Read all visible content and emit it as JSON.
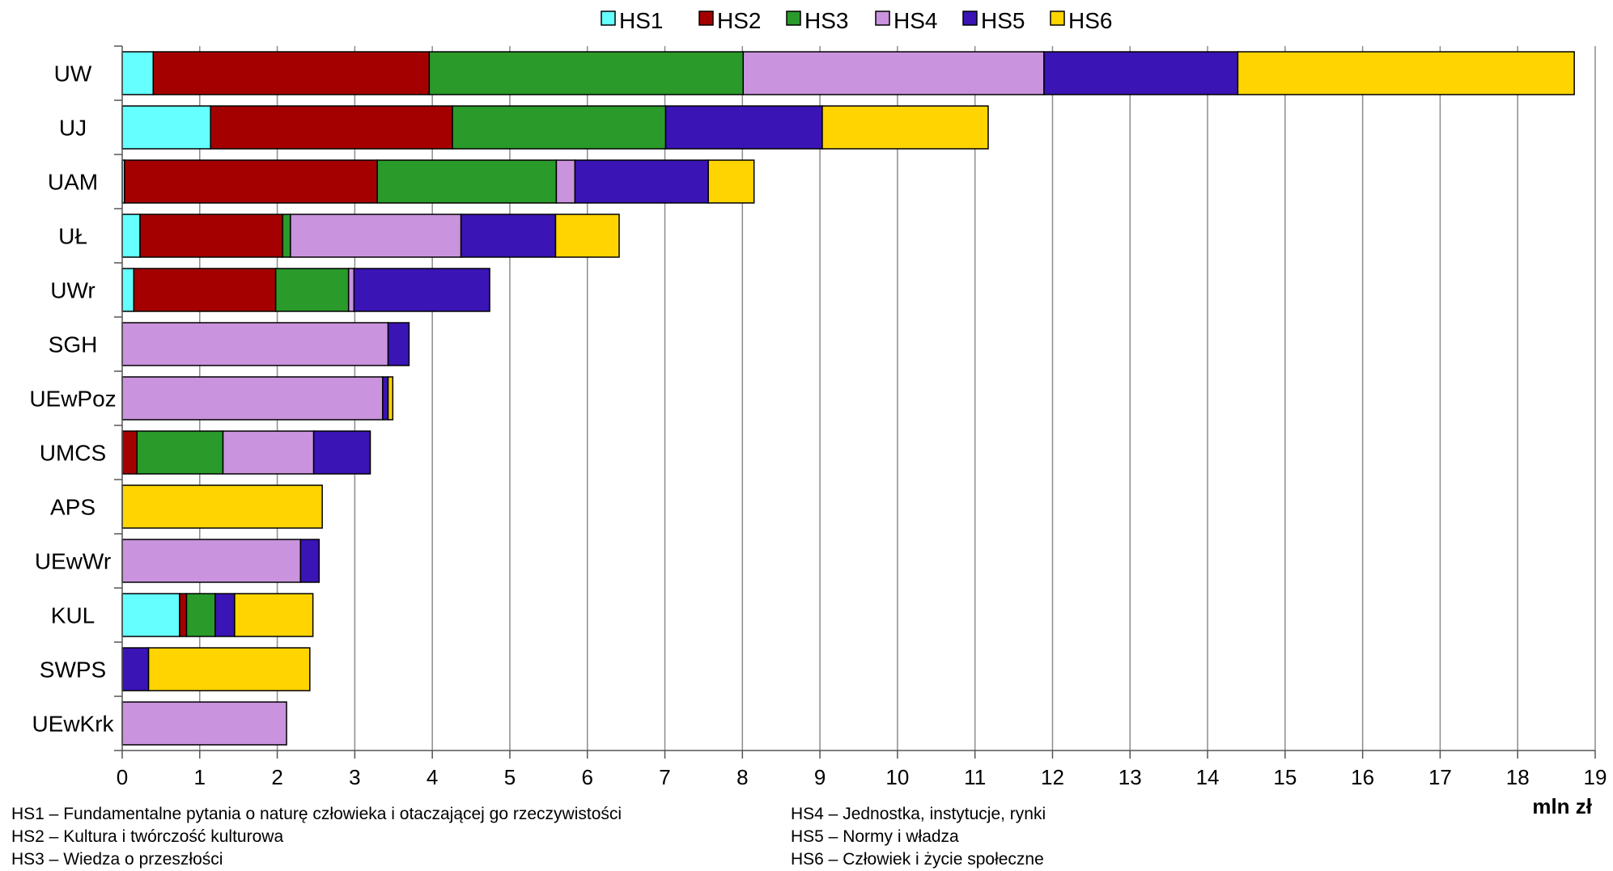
{
  "chart_data": {
    "type": "bar",
    "orientation": "horizontal",
    "stacked": true,
    "categories": [
      "UW",
      "UJ",
      "UAM",
      "UŁ",
      "UWr",
      "SGH",
      "UEwPoz",
      "UMCS",
      "APS",
      "UEwWr",
      "KUL",
      "SWPS",
      "UEwKrk"
    ],
    "series": [
      {
        "name": "HS1",
        "color": "#66FFFF",
        "values": [
          0.4,
          1.14,
          0.03,
          0.23,
          0.15,
          0,
          0,
          0,
          0,
          0,
          0.74,
          0,
          0
        ]
      },
      {
        "name": "HS2",
        "color": "#A50000",
        "values": [
          3.56,
          3.12,
          3.26,
          1.84,
          1.83,
          0,
          0,
          0.19,
          0,
          0,
          0.09,
          0,
          0
        ]
      },
      {
        "name": "HS3",
        "color": "#2A9A2A",
        "values": [
          4.05,
          2.75,
          2.31,
          0.1,
          0.94,
          0,
          0,
          1.11,
          0,
          0,
          0.37,
          0,
          0
        ]
      },
      {
        "name": "HS4",
        "color": "#C993DD",
        "values": [
          3.88,
          0,
          0.24,
          2.2,
          0.07,
          3.43,
          3.36,
          1.17,
          0,
          2.3,
          0,
          0,
          2.12
        ]
      },
      {
        "name": "HS5",
        "color": "#3A14B4",
        "values": [
          2.5,
          2.02,
          1.72,
          1.22,
          1.75,
          0.27,
          0.07,
          0.73,
          0,
          0.24,
          0.25,
          0.34,
          0
        ]
      },
      {
        "name": "HS6",
        "color": "#FFD400",
        "values": [
          4.34,
          2.14,
          0.59,
          0.82,
          0,
          0,
          0.06,
          0,
          2.58,
          0,
          1.01,
          2.08,
          0
        ]
      }
    ],
    "xlim": [
      0,
      19
    ],
    "xticks": [
      "0",
      "1",
      "2",
      "3",
      "4",
      "5",
      "6",
      "7",
      "8",
      "9",
      "10",
      "11",
      "12",
      "13",
      "14",
      "15",
      "16",
      "17",
      "18",
      "19"
    ],
    "xlabel": "mln zł",
    "ylabel": "",
    "title": "",
    "grid": "vertical",
    "legend_position": "top"
  },
  "notes": {
    "left": [
      "HS1 – Fundamentalne pytania o naturę człowieka i otaczającej go rzeczywistości",
      "HS2 – Kultura i twórczość kulturowa",
      "HS3 – Wiedza o przeszłości"
    ],
    "right": [
      "HS4 – Jednostka, instytucje, rynki",
      "HS5 – Normy i władza",
      "HS6 – Człowiek i życie społeczne"
    ]
  }
}
